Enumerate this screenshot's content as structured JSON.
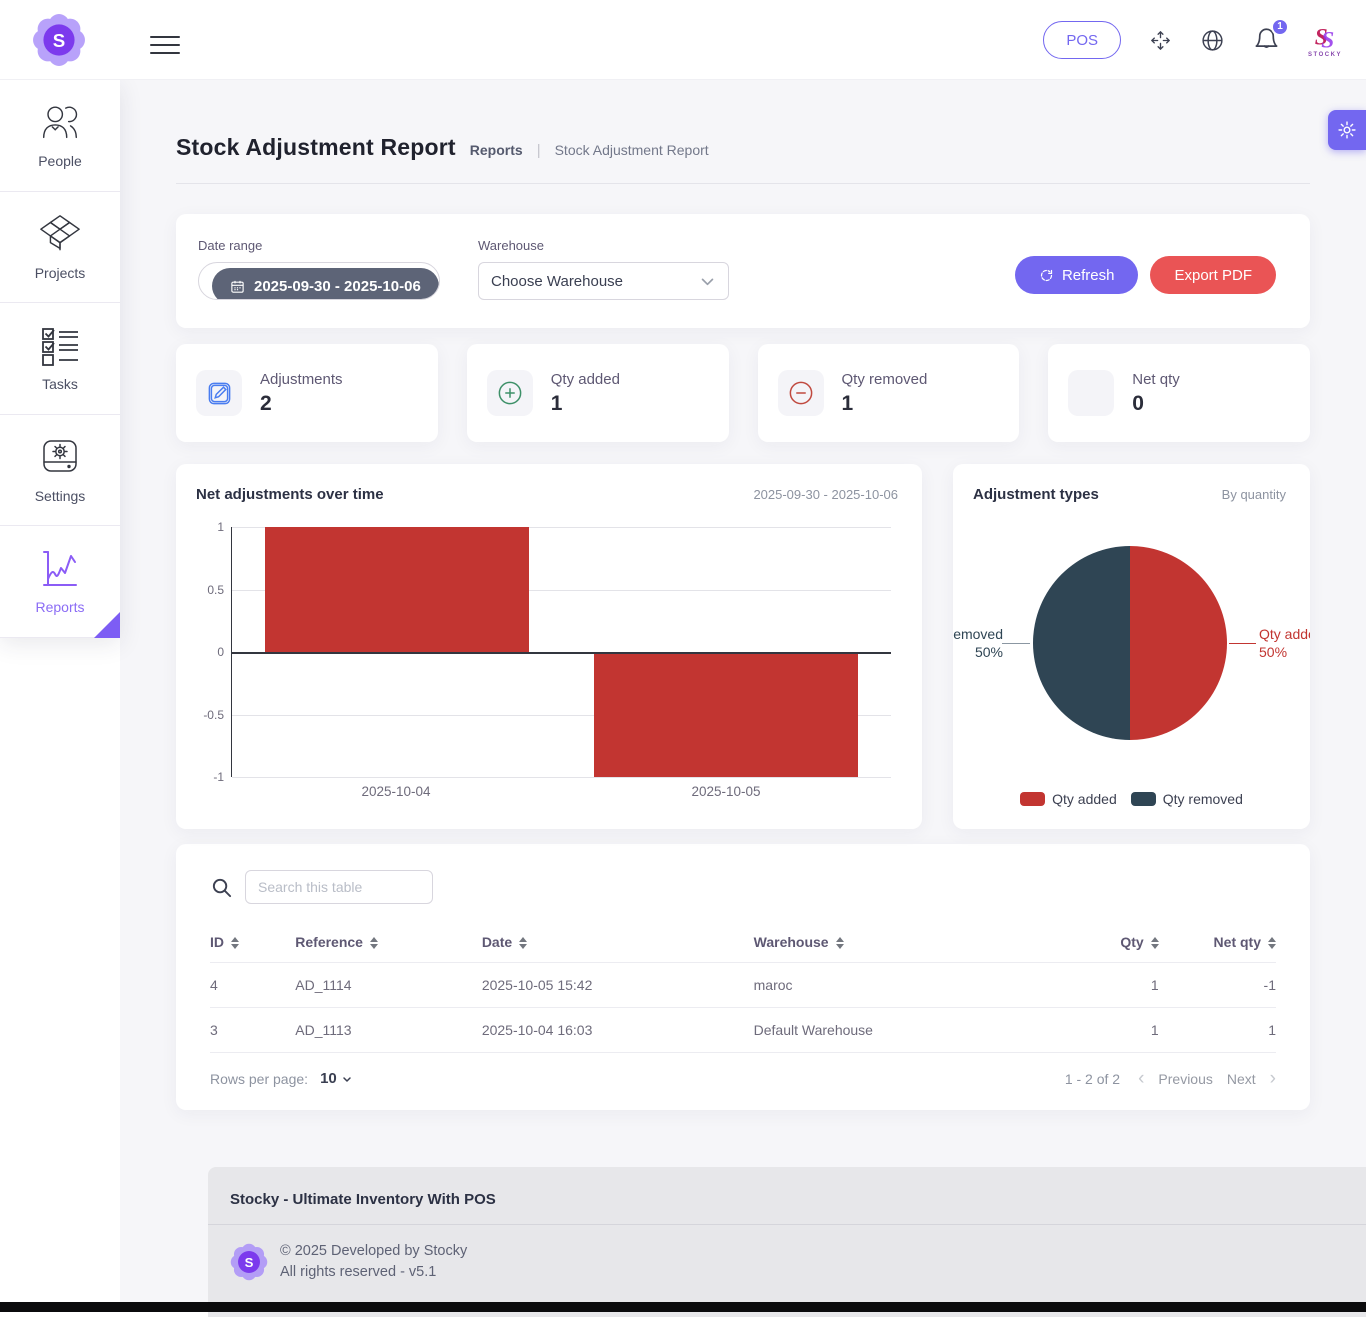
{
  "header": {
    "pos_label": "POS",
    "notification_count": "1",
    "brand_name": "STOCKY"
  },
  "sidebar": {
    "items": [
      {
        "label": "People"
      },
      {
        "label": "Projects"
      },
      {
        "label": "Tasks"
      },
      {
        "label": "Settings"
      },
      {
        "label": "Reports"
      }
    ]
  },
  "page": {
    "title": "Stock Adjustment Report",
    "breadcrumb": {
      "section": "Reports",
      "separator": "|",
      "current": "Stock Adjustment Report"
    }
  },
  "filters": {
    "date_range": {
      "label": "Date range",
      "value": "2025-09-30 - 2025-10-06"
    },
    "warehouse": {
      "label": "Warehouse",
      "value": "Choose Warehouse"
    },
    "refresh_label": "Refresh",
    "export_pdf_label": "Export PDF"
  },
  "stats": [
    {
      "label": "Adjustments",
      "value": "2",
      "icon": "edit-square-icon"
    },
    {
      "label": "Qty added",
      "value": "1",
      "icon": "plus-circle-icon"
    },
    {
      "label": "Qty removed",
      "value": "1",
      "icon": "minus-circle-icon"
    },
    {
      "label": "Net qty",
      "value": "0",
      "icon": "none"
    }
  ],
  "chart_data": [
    {
      "type": "bar",
      "title": "Net adjustments over time",
      "subtitle": "2025-09-30 - 2025-10-06",
      "categories": [
        "2025-10-04",
        "2025-10-05"
      ],
      "values": [
        1,
        -1
      ],
      "ylim": [
        -1,
        1
      ],
      "yticks": [
        1,
        0.5,
        0,
        -0.5,
        -1
      ],
      "bar_color": "#c23531",
      "grid": true,
      "legend_position": "none"
    },
    {
      "type": "pie",
      "title": "Adjustment types",
      "subtitle": "By quantity",
      "slices": [
        {
          "label": "Qty added",
          "value": 50,
          "percent_label": "50%",
          "color": "#c23531"
        },
        {
          "label": "Qty removed",
          "value": 50,
          "percent_label": "50%",
          "color": "#2f4554"
        }
      ],
      "legend_position": "bottom"
    }
  ],
  "table": {
    "search_placeholder": "Search this table",
    "columns": [
      {
        "label": "ID",
        "align": "left"
      },
      {
        "label": "Reference",
        "align": "left"
      },
      {
        "label": "Date",
        "align": "left"
      },
      {
        "label": "Warehouse",
        "align": "left"
      },
      {
        "label": "Qty",
        "align": "right"
      },
      {
        "label": "Net qty",
        "align": "right"
      }
    ],
    "rows": [
      {
        "id": "4",
        "reference": "AD_1114",
        "date": "2025-10-05 15:42",
        "warehouse": "maroc",
        "qty": "1",
        "net_qty": "-1"
      },
      {
        "id": "3",
        "reference": "AD_1113",
        "date": "2025-10-04 16:03",
        "warehouse": "Default Warehouse",
        "qty": "1",
        "net_qty": "1"
      }
    ],
    "pagination": {
      "rows_per_page_label": "Rows per page:",
      "rows_per_page_value": "10",
      "range_text": "1 - 2 of 2",
      "previous_label": "Previous",
      "next_label": "Next"
    }
  },
  "footer": {
    "title": "Stocky - Ultimate Inventory With POS",
    "copyright": "© 2025 Developed by Stocky",
    "rights": "All rights reserved - v5.1"
  },
  "colors": {
    "accent": "#7367f0",
    "danger": "#ea5455",
    "bar_red": "#c23531",
    "pie_dark": "#2f4554"
  }
}
